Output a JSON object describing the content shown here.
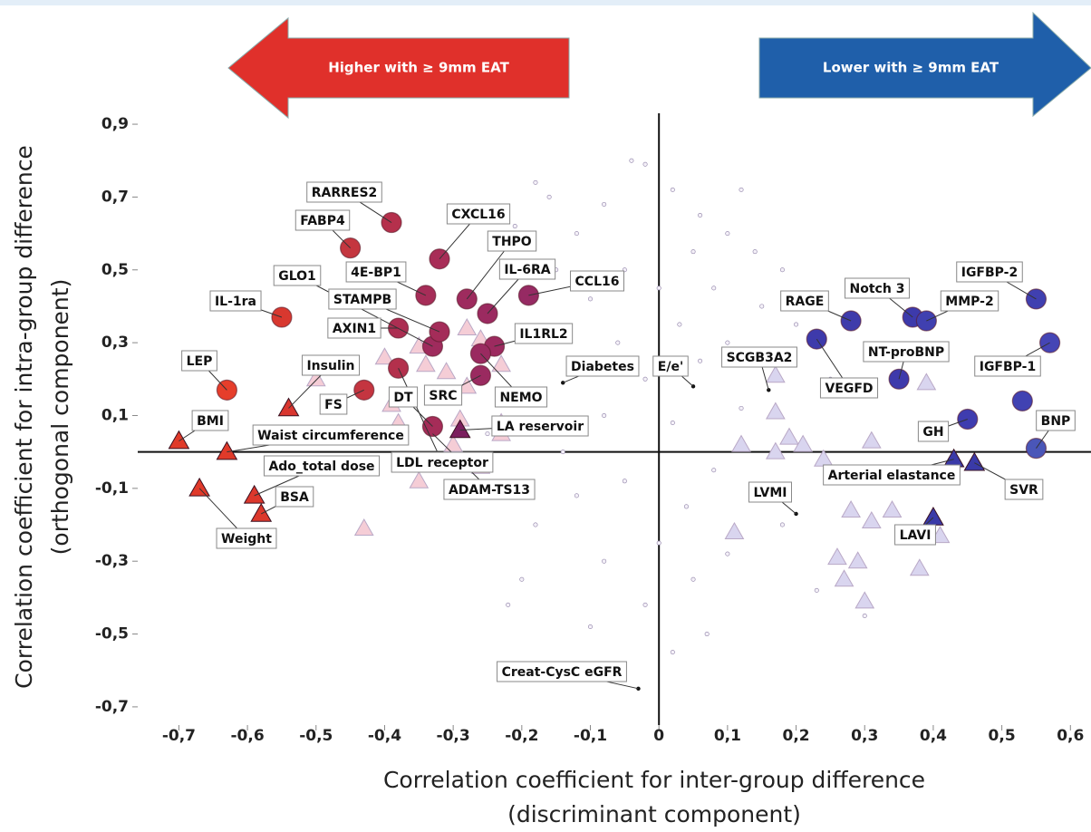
{
  "chart_data": {
    "type": "scatter",
    "annotations": [
      "Higher with ≥ 9mm EAT",
      "Lower with ≥ 9mm EAT"
    ],
    "xlabel": [
      "Correlation coefficient for inter-group difference",
      "(discriminant component)"
    ],
    "ylabel": [
      "Correlation coefficient for intra-group difference",
      "(orthogonal component)"
    ],
    "xlim": [
      -0.76,
      0.63
    ],
    "ylim": [
      -0.75,
      0.93
    ],
    "xticks": [
      {
        "value": -0.7,
        "label": "-0,7"
      },
      {
        "value": -0.6,
        "label": "-0,6"
      },
      {
        "value": -0.5,
        "label": "-0,5"
      },
      {
        "value": -0.4,
        "label": "-0,4"
      },
      {
        "value": -0.3,
        "label": "-0,3"
      },
      {
        "value": -0.2,
        "label": "-0,2"
      },
      {
        "value": -0.1,
        "label": "-0,1"
      },
      0,
      {
        "value": 0.1,
        "label": "0,1"
      },
      {
        "value": 0.2,
        "label": "0,2"
      },
      {
        "value": 0.3,
        "label": "0,3"
      },
      {
        "value": 0.4,
        "label": "0,4"
      },
      {
        "value": 0.5,
        "label": "0,5"
      },
      {
        "value": 0.6,
        "label": "0,6"
      }
    ],
    "yticks": [
      {
        "value": 0.9,
        "label": "0,9"
      },
      {
        "value": 0.7,
        "label": "0,7"
      },
      {
        "value": 0.5,
        "label": "0,5"
      },
      {
        "value": 0.3,
        "label": "0,3"
      },
      {
        "value": 0.1,
        "label": "0,1"
      },
      {
        "value": -0.1,
        "label": "-0,1"
      },
      {
        "value": -0.3,
        "label": "-0,3"
      },
      {
        "value": -0.5,
        "label": "-0,5"
      },
      {
        "value": -0.7,
        "label": "-0,7"
      }
    ],
    "series": [
      {
        "marker": "dot",
        "color": "#b9aecb",
        "x": [
          -0.04,
          -0.02,
          0.02,
          0.06,
          -0.08,
          -0.12,
          -0.16,
          0.1,
          0.14,
          0.05,
          -0.05,
          0.0,
          0.08,
          -0.1,
          0.15,
          -0.15,
          0.2,
          0.03,
          -0.06,
          0.1,
          -0.12,
          0.06,
          0.22,
          -0.02,
          -0.18,
          0.12,
          -0.08,
          0.02,
          0.08,
          -0.05,
          0.04,
          -0.12,
          0.15,
          -0.18,
          0.0,
          0.1,
          -0.08,
          -0.2,
          0.05,
          -0.02,
          0.02,
          -0.21,
          -0.18,
          0.18,
          -0.22,
          0.07,
          -0.25,
          0.25,
          -0.14,
          0.18,
          -0.1,
          0.12,
          0.23,
          0.3
        ],
        "values": [
          0.8,
          0.79,
          0.72,
          0.65,
          0.68,
          0.6,
          0.7,
          0.6,
          0.55,
          0.55,
          0.5,
          0.45,
          0.45,
          0.42,
          0.4,
          0.5,
          0.35,
          0.35,
          0.3,
          0.3,
          0.25,
          0.25,
          0.3,
          0.2,
          0.15,
          0.12,
          0.1,
          0.08,
          -0.05,
          -0.08,
          -0.15,
          -0.12,
          -0.1,
          -0.2,
          -0.25,
          -0.28,
          -0.3,
          -0.35,
          -0.35,
          -0.42,
          -0.55,
          0.62,
          0.74,
          0.5,
          -0.42,
          -0.5,
          0.05,
          0.2,
          0.0,
          -0.2,
          -0.48,
          0.72,
          -0.38,
          -0.45
        ]
      },
      {
        "marker": "triangle",
        "color": "#f5cdd6",
        "x": [
          -0.4,
          -0.35,
          -0.34,
          -0.31,
          -0.28,
          -0.26,
          -0.23,
          -0.28,
          -0.23,
          -0.23,
          -0.3,
          -0.39,
          -0.38,
          -0.35,
          -0.43,
          -0.5,
          -0.29,
          -0.26
        ],
        "values": [
          0.26,
          0.29,
          0.24,
          0.22,
          0.34,
          0.31,
          0.24,
          0.18,
          0.08,
          0.05,
          0.02,
          0.13,
          0.08,
          -0.08,
          -0.21,
          0.2,
          0.09,
          -0.04
        ]
      },
      {
        "marker": "triangle",
        "color": "#d9d5ef",
        "x": [
          0.17,
          0.17,
          0.19,
          0.21,
          0.12,
          0.17,
          0.11,
          0.24,
          0.31,
          0.28,
          0.31,
          0.26,
          0.27,
          0.29,
          0.3,
          0.34,
          0.39,
          0.38,
          0.41
        ],
        "values": [
          0.21,
          0.11,
          0.04,
          0.02,
          0.02,
          0.0,
          -0.22,
          -0.02,
          0.03,
          -0.16,
          -0.19,
          -0.29,
          -0.35,
          -0.3,
          -0.41,
          -0.16,
          0.19,
          -0.32,
          -0.23
        ]
      },
      {
        "marker": "smalldot",
        "color": "#111111",
        "labels": [
          "ADAM-TS13",
          "Diabetes",
          "E/e'",
          "SCGB3A2",
          "LVMI",
          "Creat-CysC eGFR"
        ],
        "x": [
          -0.33,
          -0.14,
          0.05,
          0.16,
          0.2,
          -0.03
        ],
        "values": [
          0.05,
          0.19,
          0.18,
          0.17,
          -0.17,
          -0.65
        ]
      },
      {
        "marker": "triangle",
        "labels": [
          "Insulin",
          "LA reservoir",
          "BMI",
          "Waist circumference",
          "Ado_total dose",
          "BSA",
          "Weight",
          "Arterial elastance",
          "SVR",
          "LAVI"
        ],
        "colors": [
          "#d9362f",
          "#7b1f5e",
          "#e03a2a",
          "#e03a2a",
          "#dc382c",
          "#dc382c",
          "#e03a2a",
          "#3a3aa8",
          "#3a3aa8",
          "#3a3aa8"
        ],
        "x": [
          -0.54,
          -0.29,
          -0.7,
          -0.63,
          -0.59,
          -0.58,
          -0.67,
          0.43,
          0.46,
          0.4
        ],
        "values": [
          0.12,
          0.06,
          0.03,
          0.0,
          -0.12,
          -0.17,
          -0.1,
          -0.02,
          -0.03,
          -0.18
        ]
      },
      {
        "marker": "circle",
        "labels": [
          "RARRES2",
          "FABP4",
          "CXCL16",
          "THPO",
          "4E-BP1",
          "GLO1",
          "AXIN1",
          "STAMPB",
          "IL-6RA",
          "CCL16",
          "IL-1ra",
          "IL1RL2",
          "LEP",
          "FS",
          "DT",
          "SRC",
          "NEMO",
          "LDL receptor",
          "IGFBP-2",
          "RAGE",
          "Notch 3",
          "MMP-2",
          "NT-proBNP",
          "IGFBP-1",
          "VEGFD",
          "GH",
          "BNP",
          null
        ],
        "colors": [
          "#b5304c",
          "#c4363f",
          "#a82d57",
          "#9e2b5e",
          "#a62d58",
          "#9f2b5d",
          "#ac2e52",
          "#a42c59",
          "#9b2a60",
          "#962a63",
          "#d8382f",
          "#9c2a5f",
          "#e63e2b",
          "#c43540",
          "#a52c58",
          "#9a2a60",
          "#9a2a60",
          "#b3304c",
          "#4040b0",
          "#3f3bab",
          "#3d3aab",
          "#4040b0",
          "#3e3aab",
          "#4545b5",
          "#3e3aab",
          "#3f3caf",
          "#4a56b8",
          "#4142b2"
        ],
        "x": [
          -0.39,
          -0.45,
          -0.32,
          -0.28,
          -0.34,
          -0.33,
          -0.38,
          -0.32,
          -0.25,
          -0.19,
          -0.55,
          -0.24,
          -0.63,
          -0.43,
          -0.33,
          -0.26,
          -0.26,
          -0.38,
          0.55,
          0.28,
          0.37,
          0.39,
          0.35,
          0.57,
          0.23,
          0.45,
          0.55,
          0.53
        ],
        "values": [
          0.63,
          0.56,
          0.53,
          0.42,
          0.43,
          0.29,
          0.34,
          0.33,
          0.38,
          0.43,
          0.37,
          0.29,
          0.17,
          0.17,
          0.07,
          0.21,
          0.27,
          0.23,
          0.42,
          0.36,
          0.37,
          0.36,
          0.2,
          0.3,
          0.31,
          0.09,
          0.01,
          0.14
        ]
      }
    ]
  }
}
